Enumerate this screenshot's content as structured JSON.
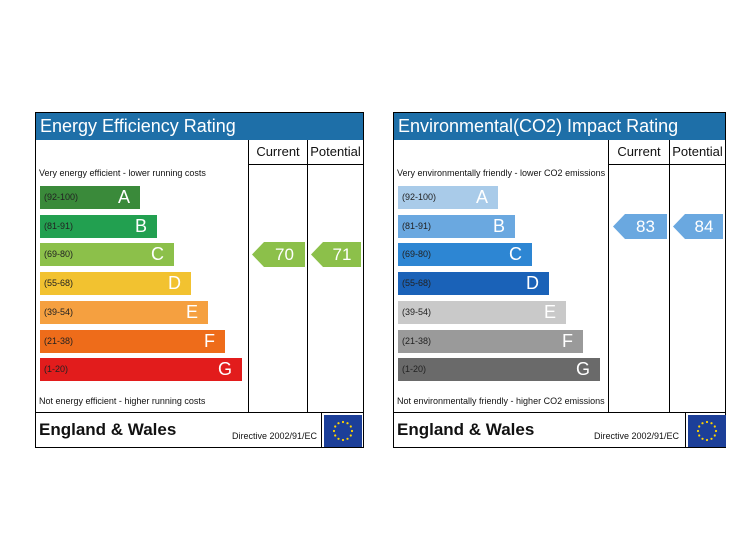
{
  "chart_data": [
    {
      "type": "rating_bands",
      "title": "Energy Efficiency Rating",
      "columns": [
        "Current",
        "Potential"
      ],
      "top_text": "Very energy efficient - lower running costs",
      "bottom_text": "Not energy efficient - higher running costs",
      "bands": [
        {
          "range": "(92-100)",
          "letter": "A",
          "color": "#3a8a3a"
        },
        {
          "range": "(81-91)",
          "letter": "B",
          "color": "#22a050"
        },
        {
          "range": "(69-80)",
          "letter": "C",
          "color": "#8cc04a"
        },
        {
          "range": "(55-68)",
          "letter": "D",
          "color": "#f2c230"
        },
        {
          "range": "(39-54)",
          "letter": "E",
          "color": "#f5a040"
        },
        {
          "range": "(21-38)",
          "letter": "F",
          "color": "#ee6c1a"
        },
        {
          "range": "(1-20)",
          "letter": "G",
          "color": "#e21c1c"
        }
      ],
      "current": 70,
      "potential": 71,
      "arrow_color": "#8cc04a",
      "footer": {
        "title": "England & Wales",
        "directive": "Directive 2002/91/EC"
      }
    },
    {
      "type": "rating_bands",
      "title": "Environmental(CO2) Impact Rating",
      "columns": [
        "Current",
        "Potential"
      ],
      "top_text": "Very environmentally friendly - lower CO2 emissions",
      "bottom_text": "Not environmentally friendly - higher CO2 emissions",
      "bands": [
        {
          "range": "(92-100)",
          "letter": "A",
          "color": "#a9cbe9"
        },
        {
          "range": "(81-91)",
          "letter": "B",
          "color": "#6aa8e0"
        },
        {
          "range": "(69-80)",
          "letter": "C",
          "color": "#2d86d3"
        },
        {
          "range": "(55-68)",
          "letter": "D",
          "color": "#1a62b8"
        },
        {
          "range": "(39-54)",
          "letter": "E",
          "color": "#c9c9c9"
        },
        {
          "range": "(21-38)",
          "letter": "F",
          "color": "#9a9a9a"
        },
        {
          "range": "(1-20)",
          "letter": "G",
          "color": "#6a6a6a"
        }
      ],
      "current": 83,
      "potential": 84,
      "arrow_color": "#6aa8e0",
      "footer": {
        "title": "England & Wales",
        "directive": "Directive 2002/91/EC"
      }
    }
  ]
}
